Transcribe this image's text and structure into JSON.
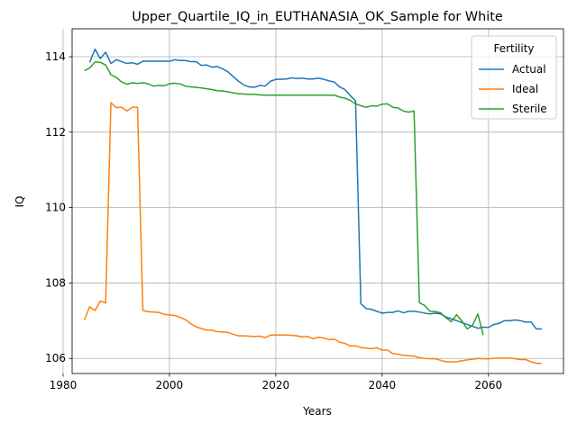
{
  "chart_data": {
    "type": "line",
    "title": "Upper_Quartile_IQ_in_EUTHANASIA_OK_Sample for White",
    "x_label": "Years",
    "y_label": "IQ",
    "legend_title": "Fertility",
    "legend": "upper right",
    "grid": true,
    "xlim": [
      1981.7,
      2074.1
    ],
    "ylim": [
      105.6,
      114.74
    ],
    "xticks": [
      1980,
      2000,
      2020,
      2040,
      2060
    ],
    "yticks": [
      106,
      108,
      110,
      112,
      114
    ],
    "x": [
      1984,
      1985,
      1986,
      1987,
      1988,
      1989,
      1990,
      1991,
      1992,
      1993,
      1994,
      1995,
      1996,
      1997,
      1998,
      1999,
      2000,
      2001,
      2002,
      2003,
      2004,
      2005,
      2006,
      2007,
      2008,
      2009,
      2010,
      2011,
      2012,
      2013,
      2014,
      2015,
      2016,
      2017,
      2018,
      2019,
      2020,
      2021,
      2022,
      2023,
      2024,
      2025,
      2026,
      2027,
      2028,
      2029,
      2030,
      2031,
      2032,
      2033,
      2034,
      2035,
      2036,
      2037,
      2038,
      2039,
      2040,
      2041,
      2042,
      2043,
      2044,
      2045,
      2046,
      2047,
      2048,
      2049,
      2050,
      2051,
      2052,
      2053,
      2054,
      2055,
      2056,
      2057,
      2058,
      2059,
      2060,
      2061,
      2062,
      2063,
      2064,
      2065,
      2066,
      2067,
      2068,
      2069,
      2070
    ],
    "series": [
      {
        "name": "Actual",
        "color": "#1f77b4",
        "values": [
          null,
          113.85,
          114.2,
          113.95,
          114.12,
          113.82,
          113.92,
          113.87,
          113.82,
          113.84,
          113.8,
          113.88,
          113.88,
          113.88,
          113.88,
          113.88,
          113.88,
          113.92,
          113.9,
          113.9,
          113.87,
          113.87,
          113.77,
          113.78,
          113.72,
          113.74,
          113.68,
          113.6,
          113.47,
          113.35,
          113.25,
          113.2,
          113.19,
          113.24,
          113.22,
          113.35,
          113.4,
          113.4,
          113.41,
          113.44,
          113.42,
          113.43,
          113.41,
          113.41,
          113.43,
          113.4,
          113.36,
          113.33,
          113.2,
          113.13,
          112.97,
          112.83,
          107.45,
          107.32,
          107.3,
          107.25,
          107.2,
          107.22,
          107.22,
          107.26,
          107.21,
          107.25,
          107.25,
          107.23,
          107.2,
          107.18,
          107.2,
          107.18,
          107.1,
          107.05,
          107.0,
          106.95,
          106.9,
          106.85,
          106.8,
          106.83,
          106.82,
          106.9,
          106.93,
          107.0,
          107.0,
          107.02,
          107.0,
          106.96,
          106.97,
          106.78,
          106.78
        ]
      },
      {
        "name": "Ideal",
        "color": "#ff7f0e",
        "values": [
          107.02,
          107.37,
          107.27,
          107.52,
          107.47,
          112.78,
          112.65,
          112.66,
          112.56,
          112.66,
          112.66,
          107.27,
          107.24,
          107.23,
          107.22,
          107.17,
          107.15,
          107.14,
          107.09,
          107.03,
          106.92,
          106.84,
          106.79,
          106.75,
          106.75,
          106.71,
          106.7,
          106.69,
          106.64,
          106.6,
          106.6,
          106.59,
          106.58,
          106.59,
          106.55,
          106.62,
          106.62,
          106.62,
          106.62,
          106.61,
          106.6,
          106.57,
          106.58,
          106.52,
          106.56,
          106.54,
          106.5,
          106.51,
          106.43,
          106.4,
          106.33,
          106.33,
          106.29,
          106.27,
          106.26,
          106.28,
          106.22,
          106.22,
          106.13,
          106.11,
          106.08,
          106.07,
          106.06,
          106.02,
          106.0,
          105.99,
          105.99,
          105.95,
          105.91,
          105.91,
          105.91,
          105.94,
          105.96,
          105.98,
          106.0,
          105.99,
          105.99,
          106.0,
          106.01,
          106.01,
          106.01,
          105.99,
          105.97,
          105.97,
          105.91,
          105.87,
          105.87
        ]
      },
      {
        "name": "Sterile",
        "color": "#2ca02c",
        "values": [
          113.63,
          113.7,
          113.86,
          113.85,
          113.78,
          113.52,
          113.45,
          113.33,
          113.27,
          113.31,
          113.29,
          113.31,
          113.28,
          113.22,
          113.24,
          113.23,
          113.28,
          113.3,
          113.28,
          113.22,
          113.2,
          113.19,
          113.17,
          113.15,
          113.13,
          113.1,
          113.09,
          113.07,
          113.04,
          113.02,
          113.01,
          113.0,
          113.0,
          112.99,
          112.98,
          112.98,
          112.98,
          112.98,
          112.98,
          112.98,
          112.98,
          112.98,
          112.98,
          112.98,
          112.98,
          112.98,
          112.98,
          112.98,
          112.93,
          112.9,
          112.84,
          112.75,
          112.7,
          112.66,
          112.7,
          112.69,
          112.74,
          112.75,
          112.66,
          112.64,
          112.56,
          112.53,
          112.56,
          107.48,
          107.4,
          107.25,
          107.24,
          107.21,
          107.08,
          106.97,
          107.16,
          106.99,
          106.78,
          106.88,
          107.18,
          106.62,
          null,
          null,
          null,
          null,
          null,
          null,
          null,
          null,
          null,
          null,
          null
        ]
      }
    ]
  }
}
